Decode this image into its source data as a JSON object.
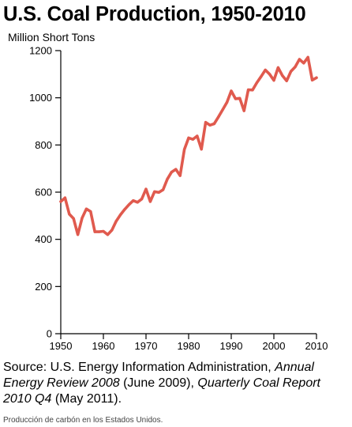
{
  "chart_data": {
    "type": "line",
    "title": "U.S. Coal Production, 1950-2010",
    "ylabel": "Million Short Tons",
    "xlabel": "",
    "xlim": [
      1950,
      2010
    ],
    "ylim": [
      0,
      1200
    ],
    "xticks": [
      1950,
      1960,
      1970,
      1980,
      1990,
      2000,
      2010
    ],
    "yticks": [
      0,
      200,
      400,
      600,
      800,
      1000,
      1200
    ],
    "grid": false,
    "line_color": "#e05a4e",
    "x": [
      1950,
      1951,
      1952,
      1953,
      1954,
      1955,
      1956,
      1957,
      1958,
      1959,
      1960,
      1961,
      1962,
      1963,
      1964,
      1965,
      1966,
      1967,
      1968,
      1969,
      1970,
      1971,
      1972,
      1973,
      1974,
      1975,
      1976,
      1977,
      1978,
      1979,
      1980,
      1981,
      1982,
      1983,
      1984,
      1985,
      1986,
      1987,
      1988,
      1989,
      1990,
      1991,
      1992,
      1993,
      1994,
      1995,
      1996,
      1997,
      1998,
      1999,
      2000,
      2001,
      2002,
      2003,
      2004,
      2005,
      2006,
      2007,
      2008,
      2009,
      2010
    ],
    "y": [
      560,
      576,
      507,
      488,
      420,
      490,
      529,
      518,
      432,
      432,
      434,
      420,
      439,
      477,
      504,
      527,
      547,
      564,
      557,
      571,
      613,
      560,
      602,
      599,
      610,
      655,
      685,
      697,
      670,
      781,
      830,
      824,
      838,
      782,
      896,
      884,
      890,
      919,
      950,
      981,
      1029,
      996,
      998,
      945,
      1034,
      1033,
      1064,
      1090,
      1118,
      1100,
      1074,
      1128,
      1094,
      1072,
      1112,
      1131,
      1163,
      1147,
      1172,
      1075,
      1085
    ]
  },
  "source": {
    "prefix": "Source: U.S. Energy Information Administration, ",
    "title1": "Annual Energy Review 2008",
    "middle": " (June 2009), ",
    "title2": "Quarterly Coal Report 2010 Q4",
    "suffix": " (May 2011)."
  },
  "caption": "Producción de carbón en los Estados Unidos."
}
